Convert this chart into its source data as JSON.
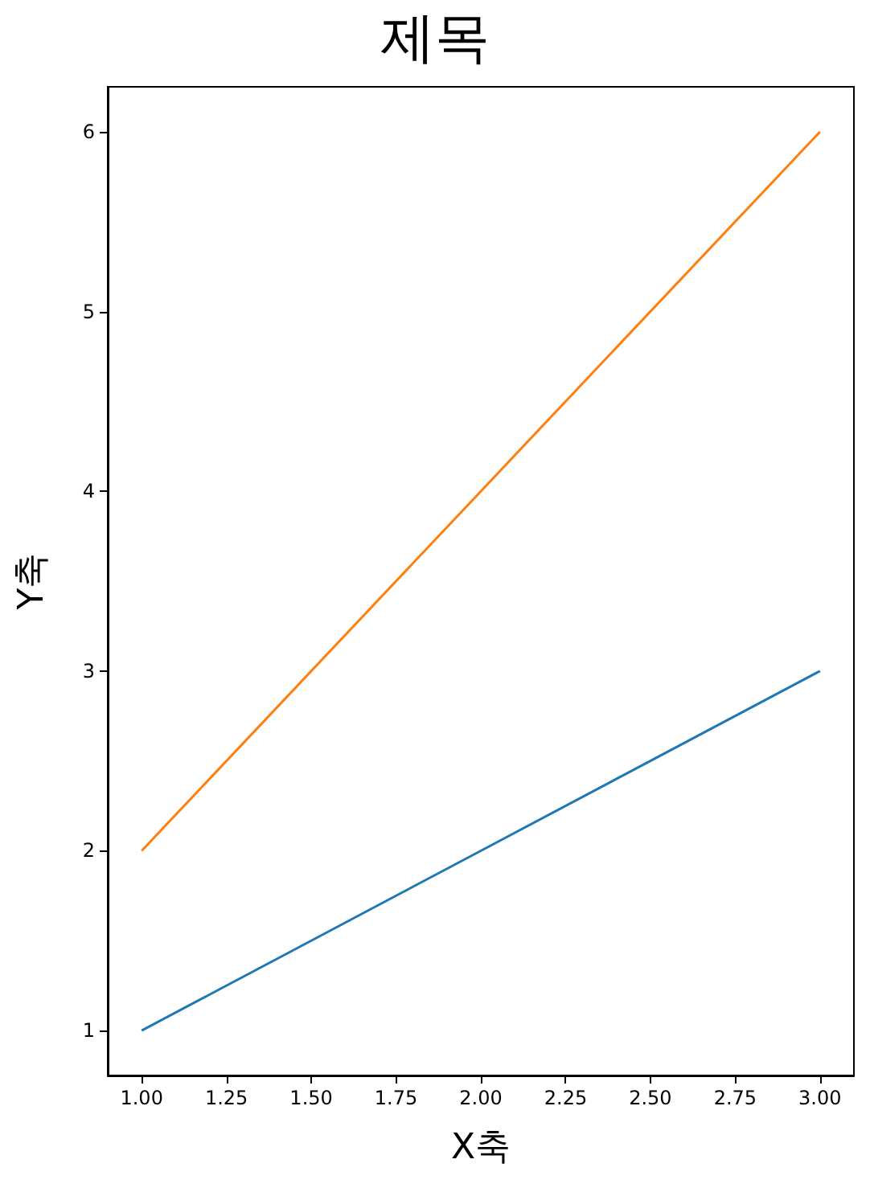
{
  "chart_data": {
    "type": "line",
    "title": "제목",
    "xlabel": "X축",
    "ylabel": "Y축",
    "x": [
      1,
      2,
      3
    ],
    "series": [
      {
        "color": "#1f77b4",
        "values": [
          1,
          2,
          3
        ]
      },
      {
        "color": "#ff7f0e",
        "values": [
          2,
          4,
          6
        ]
      }
    ],
    "xlim": [
      0.9,
      3.1
    ],
    "xticks": [
      {
        "value": 1,
        "label": "1.00"
      },
      {
        "value": 1.25,
        "label": "1.25"
      },
      {
        "value": 1.5,
        "label": "1.50"
      },
      {
        "value": 1.75,
        "label": "1.75"
      },
      {
        "value": 2,
        "label": "2.00"
      },
      {
        "value": 2.25,
        "label": "2.25"
      },
      {
        "value": 2.5,
        "label": "2.50"
      },
      {
        "value": 2.75,
        "label": "2.75"
      },
      {
        "value": 3,
        "label": "3.00"
      }
    ],
    "ylim": [
      0.75,
      6.25
    ],
    "yticks": [
      1,
      2,
      3,
      4,
      5,
      6
    ],
    "grid": false,
    "marker": "none",
    "line_style": "solid"
  }
}
